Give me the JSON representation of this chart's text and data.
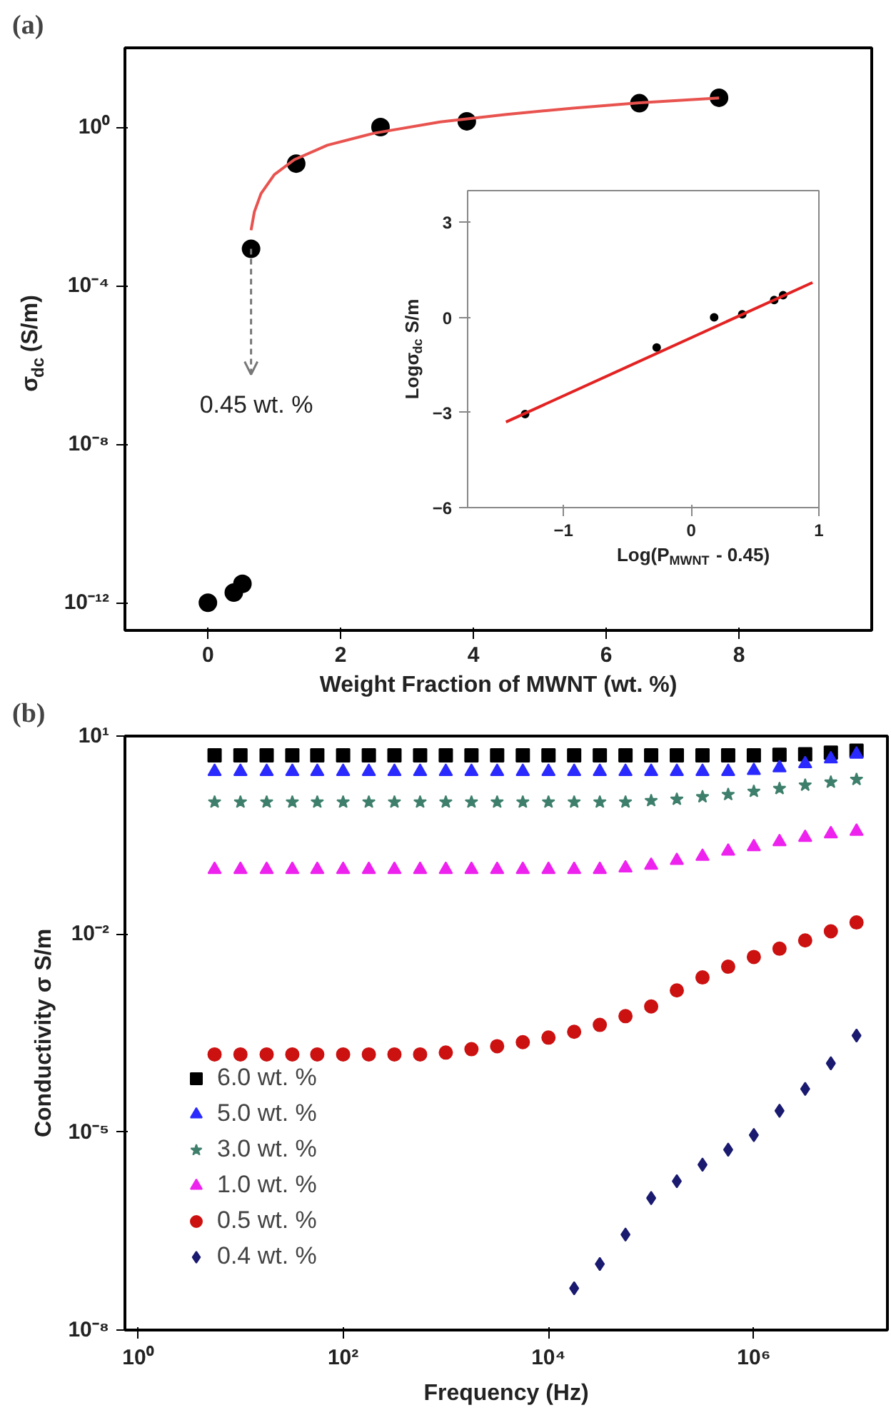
{
  "chart_data": [
    {
      "type": "scatter",
      "title": "(a)",
      "xlabel": "Weight Fraction of MWNT (wt. %)",
      "ylabel": "σ$_{dc}$ (S/m)",
      "log": "y",
      "xlim": [
        -1.25,
        10
      ],
      "ylim": [
        2e-13,
        100
      ],
      "xticks": [
        0,
        2,
        4,
        6,
        8
      ],
      "yticks": [
        {
          "value": 1e-12,
          "label": "10⁻¹²"
        },
        {
          "value": 1e-08,
          "label": "10⁻⁸"
        },
        {
          "value": 0.0001,
          "label": "10⁻⁴"
        },
        {
          "value": 1,
          "label": "10⁰"
        }
      ],
      "grid": false,
      "annotations": [
        {
          "text": "0.45 wt. %",
          "x": 0.65,
          "y": 0.00085
        }
      ],
      "series": [
        {
          "type": "scatter",
          "color": "#000000",
          "marker": "circle",
          "x": [
            0,
            0.39,
            0.52,
            0.65,
            1.33,
            2.6,
            3.9,
            6.5,
            7.7
          ],
          "values": [
            1e-12,
            1.8e-12,
            3e-12,
            0.00085,
            0.12,
            1.0,
            1.4,
            4.0,
            5.5
          ]
        },
        {
          "type": "line",
          "color": "#e8534f",
          "x": [
            0.65,
            0.7,
            0.8,
            1.0,
            1.3,
            1.8,
            2.5,
            3.5,
            4.5,
            5.5,
            6.5,
            7.7
          ],
          "values": [
            0.0025,
            0.0073,
            0.021,
            0.063,
            0.15,
            0.35,
            0.7,
            1.35,
            2.1,
            3.0,
            4.1,
            5.4
          ]
        }
      ]
    },
    {
      "type": "scatter",
      "xlabel": "Log(P$_{MWNT}$ - 0.45)",
      "ylabel": "Logσ$_{dc}$ S/m",
      "xlim": [
        -1.75,
        1
      ],
      "ylim": [
        -6,
        4
      ],
      "xticks": [
        -1,
        0,
        1
      ],
      "yticks": [
        -6,
        -3,
        0,
        3
      ],
      "grid": false,
      "series": [
        {
          "type": "scatter",
          "color": "#000000",
          "marker": "circle",
          "x": [
            -1.3,
            -0.27,
            0.18,
            0.4,
            0.65,
            0.72
          ],
          "values": [
            -3.05,
            -0.95,
            0.0,
            0.1,
            0.55,
            0.7
          ]
        },
        {
          "type": "line",
          "color": "#e32222",
          "x": [
            -1.45,
            0.95
          ],
          "values": [
            -3.3,
            1.1
          ]
        }
      ]
    },
    {
      "type": "scatter",
      "title": "(b)",
      "xlabel": "Frequency (Hz)",
      "ylabel": "Conductivity σ S/m",
      "log": "xy",
      "xlim": [
        0.75,
        20000000.0
      ],
      "ylim": [
        1e-08,
        10
      ],
      "xticks": [
        {
          "value": 1,
          "label": "10⁰"
        },
        {
          "value": 100,
          "label": "10²"
        },
        {
          "value": 10000,
          "label": "10⁴"
        },
        {
          "value": 1000000,
          "label": "10⁶"
        }
      ],
      "yticks": [
        {
          "value": 1e-08,
          "label": "10⁻⁸"
        },
        {
          "value": 1e-05,
          "label": "10⁻⁵"
        },
        {
          "value": 0.01,
          "label": "10⁻²"
        },
        {
          "value": 10,
          "label": "10¹"
        }
      ],
      "grid": false,
      "legend": "bottom left",
      "x": [
        5.6,
        10,
        18,
        32,
        56,
        100,
        178,
        316,
        562,
        1000,
        1778,
        3162,
        5623,
        10000,
        17783,
        31623,
        56234,
        100000,
        177828,
        316228,
        562341,
        1000000,
        1778279,
        3162278,
        5623413,
        10000000
      ],
      "series": [
        {
          "name": "6.0 wt. %",
          "color": "#000000",
          "marker": "square",
          "values": [
            5.1,
            5.1,
            5.1,
            5.1,
            5.1,
            5.1,
            5.1,
            5.1,
            5.1,
            5.1,
            5.1,
            5.1,
            5.1,
            5.1,
            5.1,
            5.1,
            5.1,
            5.1,
            5.1,
            5.1,
            5.1,
            5.1,
            5.2,
            5.3,
            5.6,
            6.0
          ]
        },
        {
          "name": "5.0 wt. %",
          "color": "#2a2aff",
          "marker": "triangle",
          "values": [
            2.9,
            2.9,
            2.9,
            2.9,
            2.9,
            2.9,
            2.9,
            2.9,
            2.9,
            2.9,
            2.9,
            2.9,
            2.9,
            2.9,
            2.9,
            2.9,
            2.9,
            2.9,
            2.9,
            2.9,
            2.9,
            3.0,
            3.3,
            3.8,
            4.5,
            5.3
          ]
        },
        {
          "name": "3.0 wt. %",
          "color": "#3e7f6c",
          "marker": "star",
          "values": [
            1.0,
            1.0,
            1.0,
            1.0,
            1.0,
            1.0,
            1.0,
            1.0,
            1.0,
            1.0,
            1.0,
            1.0,
            1.0,
            1.0,
            1.0,
            1.0,
            1.0,
            1.05,
            1.1,
            1.2,
            1.3,
            1.45,
            1.6,
            1.8,
            2.0,
            2.2
          ]
        },
        {
          "name": "1.0 wt. %",
          "color": "#ee22ee",
          "marker": "triangle",
          "values": [
            0.095,
            0.095,
            0.095,
            0.095,
            0.095,
            0.095,
            0.095,
            0.095,
            0.095,
            0.095,
            0.095,
            0.095,
            0.095,
            0.095,
            0.095,
            0.095,
            0.1,
            0.11,
            0.13,
            0.15,
            0.18,
            0.21,
            0.25,
            0.29,
            0.33,
            0.36
          ]
        },
        {
          "name": "0.5 wt. %",
          "color": "#cc1111",
          "marker": "circle",
          "values": [
            0.00015,
            0.00015,
            0.00015,
            0.00015,
            0.00015,
            0.00015,
            0.00015,
            0.00015,
            0.00015,
            0.00016,
            0.00018,
            0.0002,
            0.00023,
            0.00027,
            0.00033,
            0.00042,
            0.00057,
            0.0008,
            0.0014,
            0.0022,
            0.0032,
            0.0045,
            0.006,
            0.008,
            0.011,
            0.015
          ]
        },
        {
          "name": "0.4 wt. %",
          "color": "#1a1a70",
          "marker": "diamond",
          "x": [
            17783,
            31623,
            56234,
            100000,
            177828,
            316228,
            562341,
            1000000,
            1778279,
            3162278,
            5623413,
            10000000
          ],
          "values": [
            4.3e-08,
            1e-07,
            2.8e-07,
            1e-06,
            1.8e-06,
            3.2e-06,
            5.4e-06,
            9e-06,
            2.1e-05,
            4.5e-05,
            0.00011,
            0.00029
          ]
        }
      ]
    }
  ]
}
